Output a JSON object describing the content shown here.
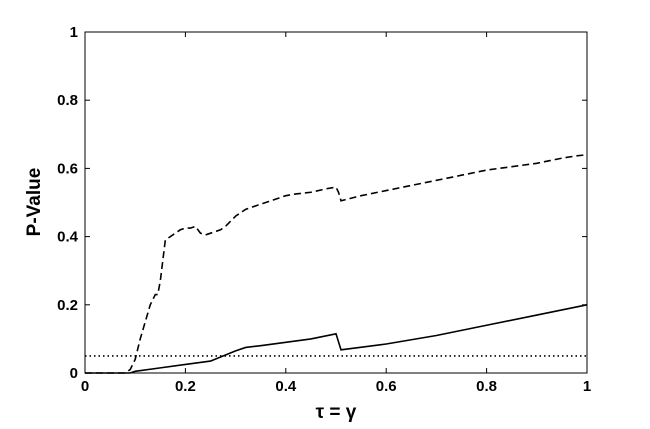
{
  "chart_data": {
    "type": "line",
    "xlabel": "τ = γ",
    "ylabel": "P-Value",
    "xlim": [
      0,
      1
    ],
    "ylim": [
      0,
      1
    ],
    "xticks": [
      0,
      0.2,
      0.4,
      0.6,
      0.8,
      1
    ],
    "xtick_labels": [
      "0",
      "0.2",
      "0.4",
      "0.6",
      "0.8",
      "1"
    ],
    "yticks": [
      0,
      0.2,
      0.4,
      0.6,
      0.8,
      1
    ],
    "ytick_labels": [
      "0",
      "0.2",
      "0.4",
      "0.6",
      "0.8",
      "1"
    ],
    "grid": false,
    "series": [
      {
        "style": "dashed",
        "color": "#000000",
        "x": [
          0,
          0.08,
          0.09,
          0.1,
          0.11,
          0.12,
          0.13,
          0.14,
          0.145,
          0.15,
          0.155,
          0.16,
          0.17,
          0.18,
          0.19,
          0.2,
          0.21,
          0.22,
          0.23,
          0.24,
          0.25,
          0.26,
          0.27,
          0.28,
          0.3,
          0.32,
          0.34,
          0.36,
          0.38,
          0.4,
          0.42,
          0.45,
          0.48,
          0.5,
          0.505,
          0.51,
          0.55,
          0.6,
          0.65,
          0.7,
          0.75,
          0.8,
          0.85,
          0.9,
          0.95,
          0.98,
          1.0
        ],
        "y": [
          0,
          0,
          0.01,
          0.04,
          0.1,
          0.15,
          0.2,
          0.23,
          0.23,
          0.27,
          0.33,
          0.39,
          0.4,
          0.41,
          0.42,
          0.425,
          0.425,
          0.43,
          0.41,
          0.405,
          0.41,
          0.415,
          0.42,
          0.43,
          0.46,
          0.48,
          0.49,
          0.5,
          0.51,
          0.52,
          0.525,
          0.53,
          0.54,
          0.545,
          0.53,
          0.505,
          0.52,
          0.535,
          0.55,
          0.565,
          0.58,
          0.595,
          0.605,
          0.615,
          0.63,
          0.637,
          0.64
        ]
      },
      {
        "style": "solid",
        "color": "#000000",
        "x": [
          0,
          0.09,
          0.1,
          0.15,
          0.2,
          0.25,
          0.3,
          0.32,
          0.35,
          0.4,
          0.45,
          0.5,
          0.51,
          0.6,
          0.7,
          0.8,
          0.9,
          1.0
        ],
        "y": [
          0,
          0,
          0.005,
          0.015,
          0.025,
          0.035,
          0.065,
          0.075,
          0.08,
          0.09,
          0.1,
          0.115,
          0.068,
          0.085,
          0.11,
          0.14,
          0.17,
          0.2
        ]
      },
      {
        "style": "dotted",
        "color": "#000000",
        "x": [
          0,
          1
        ],
        "y": [
          0.05,
          0.05
        ]
      }
    ]
  }
}
